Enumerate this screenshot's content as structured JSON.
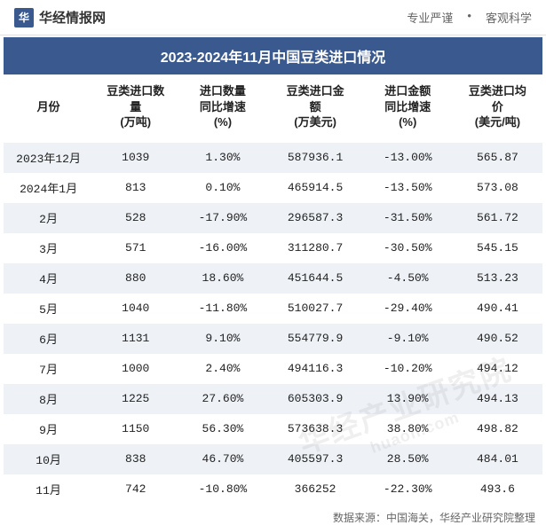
{
  "header": {
    "logo_char": "华",
    "logo_text": "华经情报网",
    "tagline1": "专业严谨",
    "tagline2": "客观科学"
  },
  "title": "2023-2024年11月中国豆类进口情况",
  "columns": [
    "月份",
    "豆类进口数\n量\n(万吨)",
    "进口数量\n同比增速\n(%)",
    "豆类进口金\n额\n(万美元)",
    "进口金额\n同比增速\n(%)",
    "豆类进口均\n价\n(美元/吨)"
  ],
  "col_widths": [
    "17%",
    "16%",
    "17%",
    "18%",
    "17%",
    "17%"
  ],
  "rows": [
    {
      "c0": "2023年12月",
      "c1": "1039",
      "c2": "1.30%",
      "c2_neg": false,
      "c3": "587936.1",
      "c4": "-13.00%",
      "c4_neg": true,
      "c5": "565.87"
    },
    {
      "c0": "2024年1月",
      "c1": "813",
      "c2": "0.10%",
      "c2_neg": false,
      "c3": "465914.5",
      "c4": "-13.50%",
      "c4_neg": true,
      "c5": "573.08"
    },
    {
      "c0": "2月",
      "c1": "528",
      "c2": "-17.90%",
      "c2_neg": true,
      "c3": "296587.3",
      "c4": "-31.50%",
      "c4_neg": true,
      "c5": "561.72"
    },
    {
      "c0": "3月",
      "c1": "571",
      "c2": "-16.00%",
      "c2_neg": true,
      "c3": "311280.7",
      "c4": "-30.50%",
      "c4_neg": true,
      "c5": "545.15"
    },
    {
      "c0": "4月",
      "c1": "880",
      "c2": "18.60%",
      "c2_neg": false,
      "c3": "451644.5",
      "c4": "-4.50%",
      "c4_neg": true,
      "c5": "513.23"
    },
    {
      "c0": "5月",
      "c1": "1040",
      "c2": "-11.80%",
      "c2_neg": true,
      "c3": "510027.7",
      "c4": "-29.40%",
      "c4_neg": true,
      "c5": "490.41"
    },
    {
      "c0": "6月",
      "c1": "1131",
      "c2": "9.10%",
      "c2_neg": false,
      "c3": "554779.9",
      "c4": "-9.10%",
      "c4_neg": true,
      "c5": "490.52"
    },
    {
      "c0": "7月",
      "c1": "1000",
      "c2": "2.40%",
      "c2_neg": false,
      "c3": "494116.3",
      "c4": "-10.20%",
      "c4_neg": true,
      "c5": "494.12"
    },
    {
      "c0": "8月",
      "c1": "1225",
      "c2": "27.60%",
      "c2_neg": false,
      "c3": "605303.9",
      "c4": "13.90%",
      "c4_neg": false,
      "c5": "494.13"
    },
    {
      "c0": "9月",
      "c1": "1150",
      "c2": "56.30%",
      "c2_neg": false,
      "c3": "573638.3",
      "c4": "38.80%",
      "c4_neg": false,
      "c5": "498.82"
    },
    {
      "c0": "10月",
      "c1": "838",
      "c2": "46.70%",
      "c2_neg": false,
      "c3": "405597.3",
      "c4": "28.50%",
      "c4_neg": false,
      "c5": "484.01"
    },
    {
      "c0": "11月",
      "c1": "742",
      "c2": "-10.80%",
      "c2_neg": true,
      "c3": "366252",
      "c4": "-22.30%",
      "c4_neg": true,
      "c5": "493.6"
    }
  ],
  "source": "数据来源：中国海关，华经产业研究院整理",
  "watermark": "华经产业研究院",
  "watermark_url": "huaon.com",
  "colors": {
    "brand": "#3a5a8f",
    "alt_row": "#eef2f7",
    "neg": "#3a6db5",
    "text": "#222222"
  }
}
